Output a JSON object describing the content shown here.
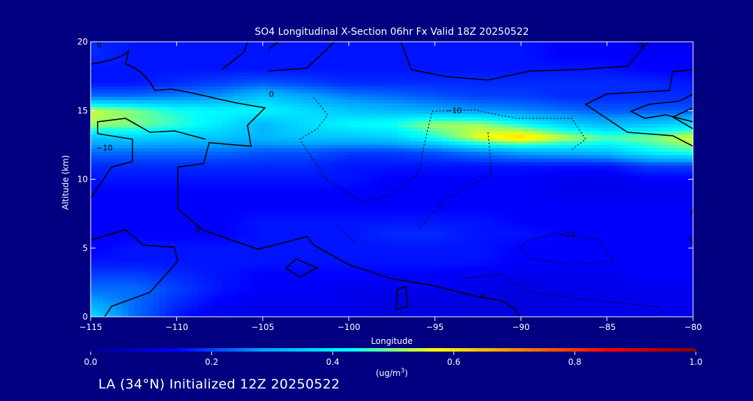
{
  "chart_data": {
    "type": "heatmap",
    "title": "SO4 Longitudinal X-Section 06hr  Fx Valid 18Z 20250522",
    "xlabel": "Longitude",
    "ylabel": "Altitude (km)",
    "xlim": [
      -115,
      -80
    ],
    "ylim": [
      0,
      20
    ],
    "x_ticks": [
      -115,
      -110,
      -105,
      -100,
      -95,
      -90,
      -85,
      -80
    ],
    "x_tick_labels": [
      "−115",
      "−110",
      "−105",
      "−100",
      "−95",
      "−90",
      "−85",
      "−80"
    ],
    "y_ticks": [
      0,
      5,
      10,
      15,
      20
    ],
    "y_tick_labels": [
      "0",
      "5",
      "10",
      "15",
      "20"
    ],
    "colorbar": {
      "label": "(ug/m³)",
      "min": 0.0,
      "max": 1.0,
      "ticks": [
        0.0,
        0.2,
        0.4,
        0.6,
        0.8,
        1.0
      ],
      "tick_labels": [
        "0.0",
        "0.2",
        "0.4",
        "0.6",
        "0.8",
        "1.0"
      ],
      "colors": [
        "#000090",
        "#0000ff",
        "#00a0ff",
        "#00ffff",
        "#ffff00",
        "#ff8000",
        "#ff0000",
        "#800000"
      ]
    },
    "field_grid": {
      "lons": [
        -115,
        -112.5,
        -110,
        -107.5,
        -105,
        -102.5,
        -100,
        -97.5,
        -95,
        -92.5,
        -90,
        -87.5,
        -85,
        -82.5,
        -80
      ],
      "alts": [
        0,
        1,
        2,
        3,
        4,
        5,
        6,
        7,
        8,
        9,
        10,
        11,
        12,
        13,
        14,
        15,
        16,
        17,
        18,
        19,
        20
      ],
      "values": [
        [
          0.38,
          0.24,
          0.16,
          0.12,
          0.12,
          0.12,
          0.12,
          0.1,
          0.12,
          0.1,
          0.1,
          0.12,
          0.12,
          0.12,
          0.12
        ],
        [
          0.3,
          0.24,
          0.18,
          0.14,
          0.12,
          0.12,
          0.12,
          0.1,
          0.1,
          0.1,
          0.1,
          0.1,
          0.12,
          0.12,
          0.12
        ],
        [
          0.24,
          0.24,
          0.2,
          0.16,
          0.14,
          0.14,
          0.12,
          0.12,
          0.12,
          0.12,
          0.1,
          0.12,
          0.12,
          0.12,
          0.12
        ],
        [
          0.2,
          0.2,
          0.18,
          0.16,
          0.14,
          0.14,
          0.14,
          0.14,
          0.14,
          0.12,
          0.12,
          0.12,
          0.12,
          0.14,
          0.14
        ],
        [
          0.16,
          0.16,
          0.16,
          0.16,
          0.16,
          0.16,
          0.16,
          0.16,
          0.16,
          0.16,
          0.14,
          0.14,
          0.14,
          0.14,
          0.14
        ],
        [
          0.14,
          0.16,
          0.16,
          0.16,
          0.16,
          0.16,
          0.16,
          0.16,
          0.16,
          0.16,
          0.14,
          0.14,
          0.14,
          0.14,
          0.14
        ],
        [
          0.14,
          0.14,
          0.14,
          0.14,
          0.16,
          0.16,
          0.16,
          0.18,
          0.18,
          0.16,
          0.16,
          0.14,
          0.14,
          0.14,
          0.14
        ],
        [
          0.14,
          0.14,
          0.14,
          0.14,
          0.16,
          0.16,
          0.16,
          0.16,
          0.16,
          0.16,
          0.14,
          0.14,
          0.14,
          0.14,
          0.14
        ],
        [
          0.14,
          0.14,
          0.14,
          0.14,
          0.14,
          0.14,
          0.14,
          0.14,
          0.14,
          0.14,
          0.14,
          0.14,
          0.14,
          0.14,
          0.14
        ],
        [
          0.14,
          0.14,
          0.14,
          0.14,
          0.14,
          0.14,
          0.14,
          0.14,
          0.14,
          0.14,
          0.14,
          0.12,
          0.12,
          0.12,
          0.12
        ],
        [
          0.16,
          0.16,
          0.16,
          0.16,
          0.16,
          0.16,
          0.16,
          0.14,
          0.14,
          0.14,
          0.14,
          0.12,
          0.12,
          0.14,
          0.14
        ],
        [
          0.18,
          0.18,
          0.18,
          0.18,
          0.18,
          0.18,
          0.16,
          0.16,
          0.16,
          0.16,
          0.16,
          0.16,
          0.16,
          0.2,
          0.2
        ],
        [
          0.24,
          0.24,
          0.24,
          0.24,
          0.22,
          0.22,
          0.2,
          0.2,
          0.22,
          0.26,
          0.3,
          0.32,
          0.34,
          0.42,
          0.46
        ],
        [
          0.34,
          0.36,
          0.34,
          0.34,
          0.32,
          0.34,
          0.34,
          0.36,
          0.44,
          0.56,
          0.62,
          0.54,
          0.48,
          0.5,
          0.56
        ],
        [
          0.52,
          0.5,
          0.46,
          0.4,
          0.32,
          0.38,
          0.42,
          0.44,
          0.52,
          0.52,
          0.44,
          0.36,
          0.32,
          0.34,
          0.38
        ],
        [
          0.54,
          0.5,
          0.44,
          0.42,
          0.42,
          0.38,
          0.34,
          0.32,
          0.3,
          0.28,
          0.26,
          0.24,
          0.22,
          0.22,
          0.22
        ],
        [
          0.24,
          0.24,
          0.26,
          0.28,
          0.34,
          0.3,
          0.26,
          0.24,
          0.22,
          0.2,
          0.2,
          0.18,
          0.18,
          0.18,
          0.18
        ],
        [
          0.16,
          0.16,
          0.18,
          0.2,
          0.22,
          0.2,
          0.18,
          0.18,
          0.18,
          0.18,
          0.18,
          0.18,
          0.18,
          0.18,
          0.16
        ],
        [
          0.16,
          0.16,
          0.16,
          0.16,
          0.16,
          0.16,
          0.16,
          0.16,
          0.16,
          0.16,
          0.16,
          0.16,
          0.16,
          0.14,
          0.14
        ],
        [
          0.18,
          0.16,
          0.16,
          0.16,
          0.16,
          0.16,
          0.16,
          0.16,
          0.16,
          0.16,
          0.16,
          0.14,
          0.14,
          0.14,
          0.14
        ],
        [
          0.18,
          0.16,
          0.16,
          0.16,
          0.16,
          0.16,
          0.16,
          0.16,
          0.16,
          0.16,
          0.16,
          0.14,
          0.14,
          0.12,
          0.12
        ]
      ]
    },
    "contour_labels": [
      {
        "text": "0",
        "lon": -114.5,
        "alt": 19.6
      },
      {
        "text": "0",
        "lon": -108.8,
        "alt": 6.1
      },
      {
        "text": "−10",
        "lon": -114.2,
        "alt": 12.1
      },
      {
        "text": "−10",
        "lon": -93.9,
        "alt": 14.8
      },
      {
        "text": "−10",
        "lon": -87.3,
        "alt": 5.8
      },
      {
        "text": "0",
        "lon": -104.5,
        "alt": 16.0
      },
      {
        "text": "0",
        "lon": -83.0,
        "alt": 19.6
      },
      {
        "text": "0",
        "lon": -92.2,
        "alt": 1.3
      }
    ],
    "grid": false
  },
  "footer": "LA (34°N) Initialized 12Z 20250522"
}
